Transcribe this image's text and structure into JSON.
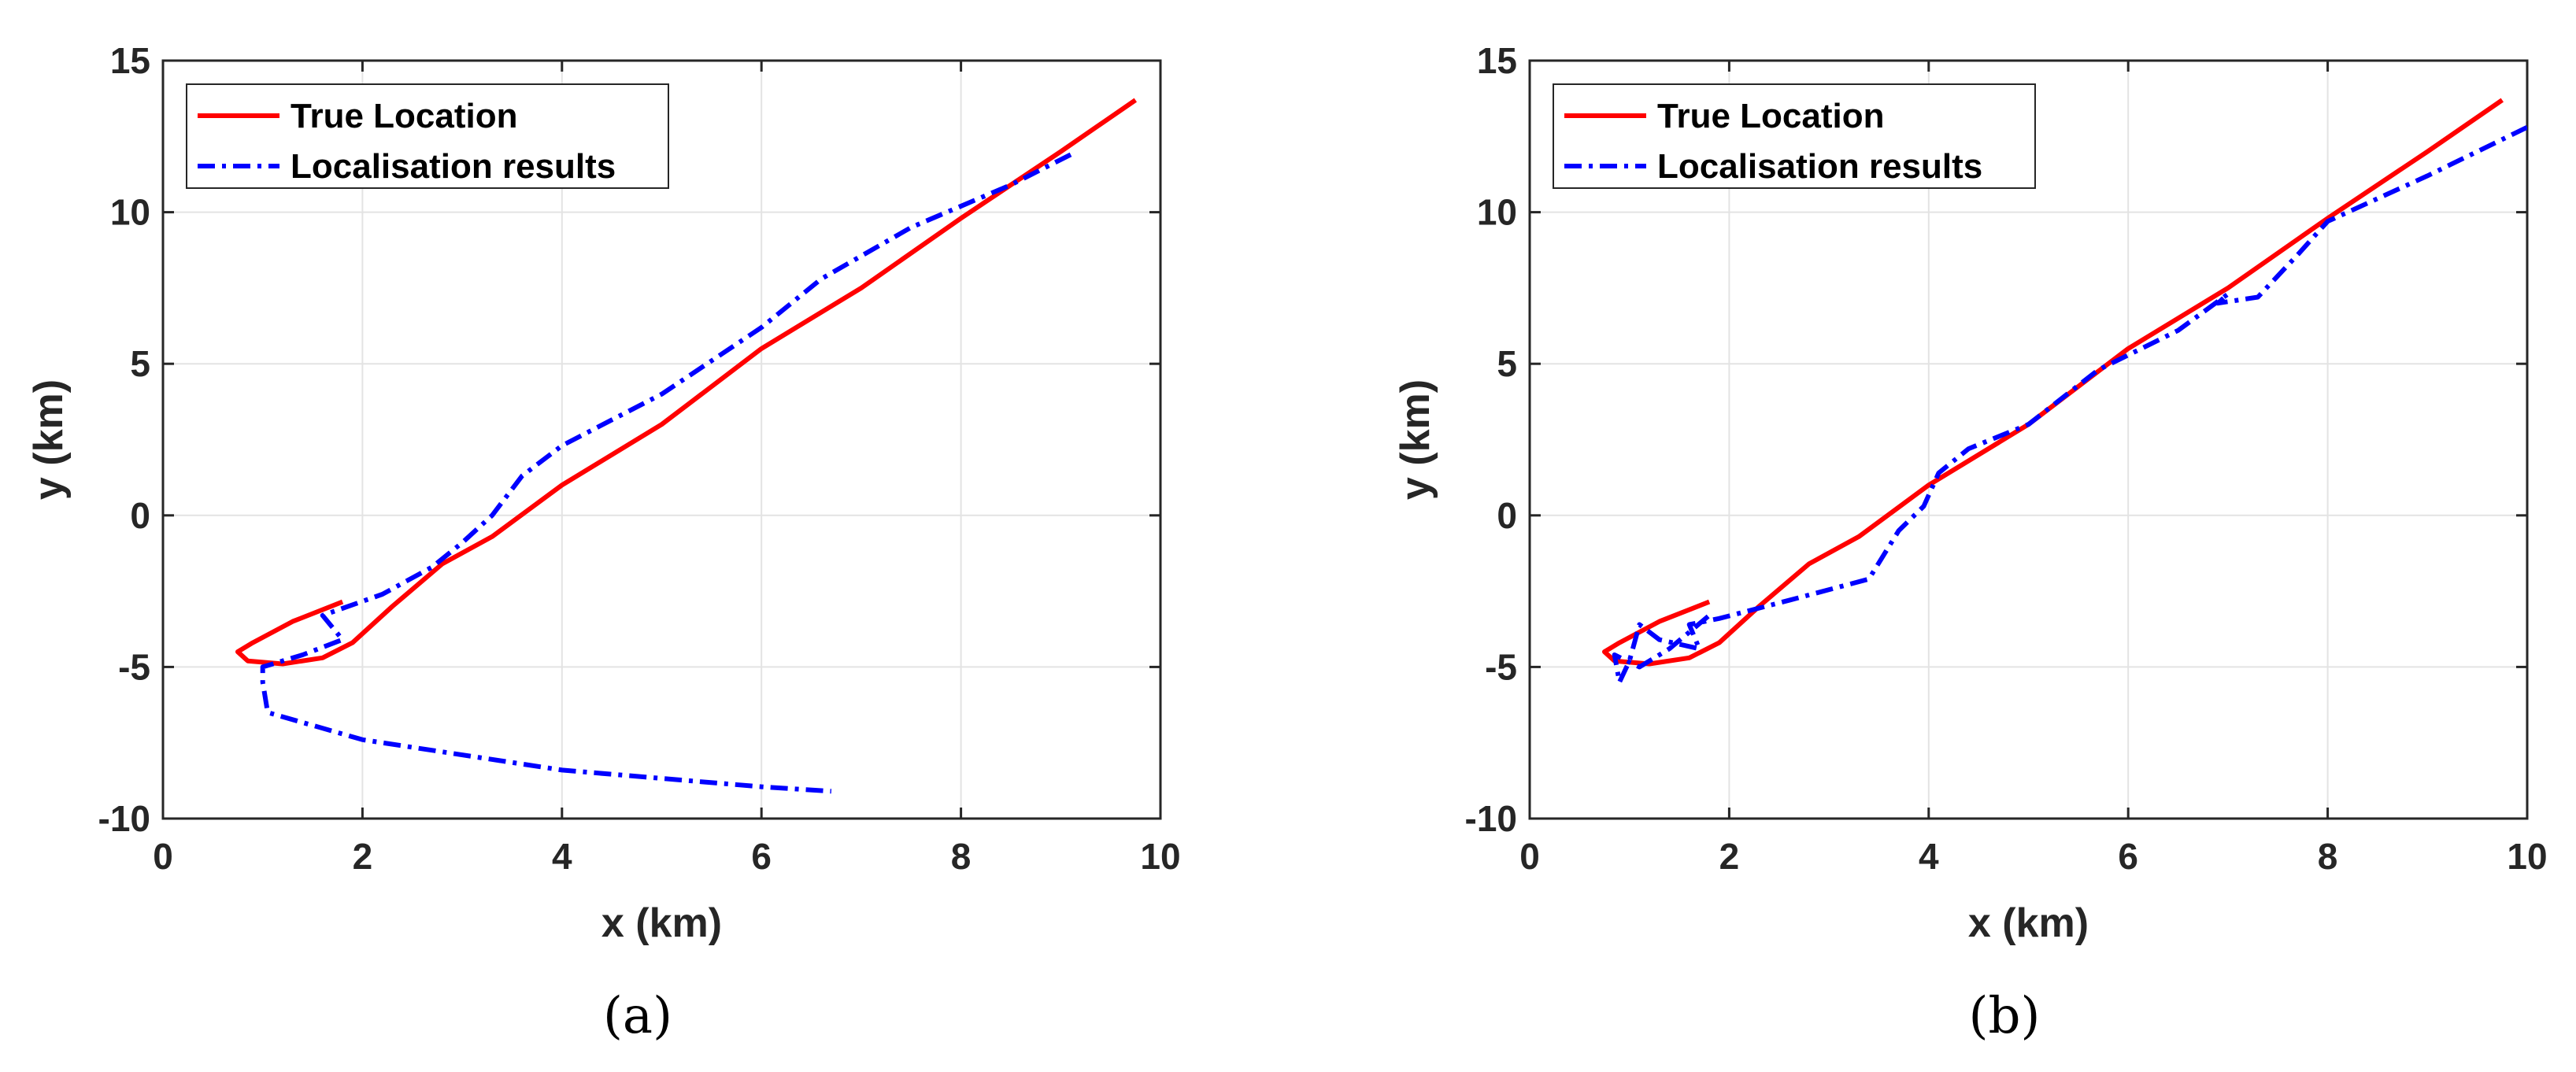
{
  "chart_data": [
    {
      "type": "line",
      "caption": "(a)",
      "xlabel": "x (km)",
      "ylabel": "y (km)",
      "xlim": [
        0,
        10
      ],
      "ylim": [
        -10,
        15
      ],
      "xticks": [
        0,
        2,
        4,
        6,
        8,
        10
      ],
      "yticks": [
        -10,
        -5,
        0,
        5,
        10,
        15
      ],
      "grid": true,
      "legend_position": "top-left",
      "series": [
        {
          "name": "True Location",
          "color": "#ff0000",
          "style": "solid",
          "points": [
            [
              1.8,
              -2.85
            ],
            [
              1.3,
              -3.5
            ],
            [
              0.9,
              -4.2
            ],
            [
              0.75,
              -4.5
            ],
            [
              0.85,
              -4.8
            ],
            [
              1.2,
              -4.9
            ],
            [
              1.6,
              -4.7
            ],
            [
              1.9,
              -4.2
            ],
            [
              2.3,
              -3.0
            ],
            [
              2.8,
              -1.6
            ],
            [
              3.3,
              -0.7
            ],
            [
              4.0,
              1.0
            ],
            [
              5.0,
              3.0
            ],
            [
              6.0,
              5.5
            ],
            [
              7.0,
              7.5
            ],
            [
              8.0,
              9.8
            ],
            [
              9.0,
              12.0
            ],
            [
              9.75,
              13.7
            ]
          ]
        },
        {
          "name": "Localisation results",
          "color": "#0000ff",
          "style": "dashdot",
          "points": [
            [
              9.1,
              11.9
            ],
            [
              8.5,
              10.9
            ],
            [
              7.5,
              9.5
            ],
            [
              6.6,
              7.8
            ],
            [
              6.0,
              6.2
            ],
            [
              5.0,
              4.0
            ],
            [
              4.0,
              2.3
            ],
            [
              3.6,
              1.3
            ],
            [
              3.3,
              0.0
            ],
            [
              3.0,
              -0.9
            ],
            [
              2.7,
              -1.7
            ],
            [
              2.2,
              -2.6
            ],
            [
              1.6,
              -3.3
            ],
            [
              1.8,
              -4.1
            ],
            [
              1.4,
              -4.6
            ],
            [
              1.0,
              -5.0
            ],
            [
              1.0,
              -5.5
            ],
            [
              1.05,
              -6.5
            ],
            [
              2.0,
              -7.4
            ],
            [
              4.0,
              -8.4
            ],
            [
              6.0,
              -8.95
            ],
            [
              6.7,
              -9.1
            ]
          ]
        }
      ]
    },
    {
      "type": "line",
      "caption": "(b)",
      "xlabel": "x (km)",
      "ylabel": "y (km)",
      "xlim": [
        0,
        10
      ],
      "ylim": [
        -10,
        15
      ],
      "xticks": [
        0,
        2,
        4,
        6,
        8,
        10
      ],
      "yticks": [
        -10,
        -5,
        0,
        5,
        10,
        15
      ],
      "grid": true,
      "legend_position": "top-left",
      "series": [
        {
          "name": "True Location",
          "color": "#ff0000",
          "style": "solid",
          "points": [
            [
              1.8,
              -2.85
            ],
            [
              1.3,
              -3.5
            ],
            [
              0.9,
              -4.2
            ],
            [
              0.75,
              -4.5
            ],
            [
              0.85,
              -4.8
            ],
            [
              1.2,
              -4.9
            ],
            [
              1.6,
              -4.7
            ],
            [
              1.9,
              -4.2
            ],
            [
              2.3,
              -3.0
            ],
            [
              2.8,
              -1.6
            ],
            [
              3.3,
              -0.7
            ],
            [
              4.0,
              1.0
            ],
            [
              5.0,
              3.0
            ],
            [
              6.0,
              5.5
            ],
            [
              7.0,
              7.5
            ],
            [
              8.0,
              9.8
            ],
            [
              9.0,
              12.0
            ],
            [
              9.75,
              13.7
            ]
          ]
        },
        {
          "name": "Localisation results",
          "color": "#0000ff",
          "style": "dashdot",
          "points": [
            [
              10.0,
              12.8
            ],
            [
              9.0,
              11.2
            ],
            [
              8.0,
              9.7
            ],
            [
              7.7,
              8.6
            ],
            [
              7.3,
              7.2
            ],
            [
              6.9,
              7.0
            ],
            [
              7.0,
              7.3
            ],
            [
              6.5,
              6.1
            ],
            [
              5.7,
              4.8
            ],
            [
              5.0,
              3.0
            ],
            [
              4.4,
              2.2
            ],
            [
              4.1,
              1.4
            ],
            [
              3.95,
              0.3
            ],
            [
              3.7,
              -0.5
            ],
            [
              3.4,
              -2.1
            ],
            [
              2.6,
              -2.8
            ],
            [
              1.9,
              -3.4
            ],
            [
              1.6,
              -3.6
            ],
            [
              1.7,
              -4.4
            ],
            [
              1.3,
              -4.1
            ],
            [
              1.1,
              -3.6
            ],
            [
              1.0,
              -4.8
            ],
            [
              0.9,
              -5.5
            ],
            [
              0.85,
              -4.6
            ],
            [
              1.1,
              -5.0
            ],
            [
              1.4,
              -4.4
            ],
            [
              1.8,
              -3.3
            ]
          ]
        }
      ]
    }
  ]
}
